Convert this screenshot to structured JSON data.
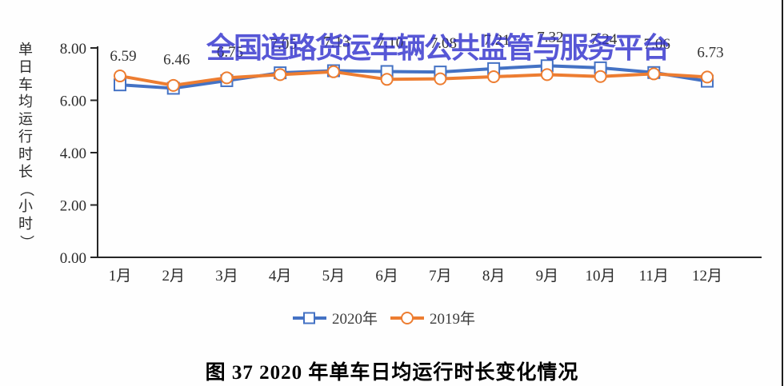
{
  "watermark": "全国道路货运车辆公共监管与服务平台",
  "caption": "图 37 2020 年单车日均运行时长变化情况",
  "colors": {
    "series_2020": "#4472C4",
    "series_2019": "#ED7D31",
    "axis": "#262626",
    "tick_text": "#2b2b2b",
    "data_label": "#333333",
    "watermark_blue": "#3232CD"
  },
  "chart_data": {
    "type": "line",
    "title": "",
    "xlabel": "",
    "ylabel": "单日车均运行时长（小时）",
    "categories": [
      "1月",
      "2月",
      "3月",
      "4月",
      "5月",
      "6月",
      "7月",
      "8月",
      "9月",
      "10月",
      "11月",
      "12月"
    ],
    "ylim": [
      0,
      8
    ],
    "ytick_step": 2,
    "ytick_labels": [
      "0.00",
      "2.00",
      "4.00",
      "6.00",
      "8.00"
    ],
    "grid": false,
    "legend_position": "bottom",
    "series": [
      {
        "name": "2020年",
        "color": "#4472C4",
        "marker": "square",
        "values": [
          6.59,
          6.46,
          6.75,
          7.05,
          7.13,
          7.1,
          7.08,
          7.21,
          7.32,
          7.24,
          7.06,
          6.73
        ],
        "labels": [
          "6.59",
          "6.46",
          "6.75",
          "7.05",
          "7.13",
          "7.10",
          "7.08",
          "7.21",
          "7.32",
          "7.24",
          "7.06",
          "6.73"
        ],
        "labeled": true
      },
      {
        "name": "2019年",
        "color": "#ED7D31",
        "marker": "circle",
        "values": [
          6.93,
          6.57,
          6.86,
          6.98,
          7.09,
          6.8,
          6.82,
          6.9,
          6.98,
          6.91,
          7.01,
          6.89
        ],
        "labels": [],
        "labeled": false
      }
    ]
  }
}
